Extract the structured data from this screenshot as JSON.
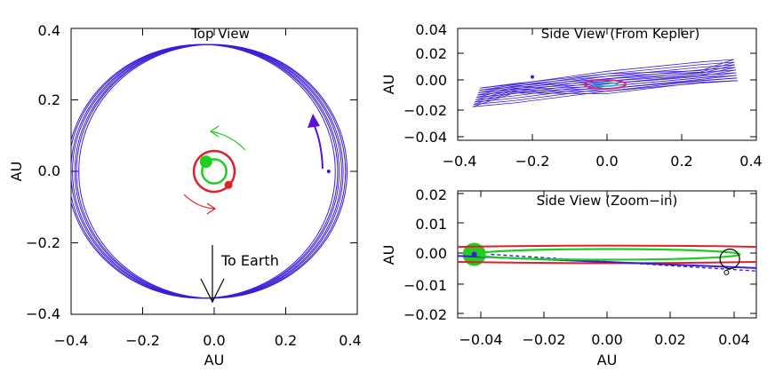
{
  "chart_data": [
    {
      "type": "line",
      "title": "Top View",
      "xlabel": "AU",
      "ylabel": "AU",
      "xlim": [
        -0.4,
        0.4
      ],
      "ylim": [
        -0.4,
        0.4
      ],
      "xticks": [
        "−0.4",
        "−0.2",
        "0.0",
        "0.2",
        "0.4"
      ],
      "yticks": [
        "−0.4",
        "−0.2",
        "0.0",
        "0.2",
        "0.4"
      ],
      "annotation": "To Earth",
      "colors": {
        "outer_orbit": "#3a1fd6",
        "inner_orbit": "#e0202a",
        "innermost_orbit": "#22cc22",
        "outer_arrow": "#5a10d8"
      },
      "orbits": [
        {
          "series": "outer",
          "shape": "ellipse",
          "cx": -0.02,
          "cy": 0.0,
          "rx": 0.375,
          "ry": 0.355
        },
        {
          "series": "inner",
          "shape": "circle",
          "cx": 0.0,
          "cy": 0.0,
          "r": 0.057
        },
        {
          "series": "innermost",
          "shape": "circle",
          "cx": 0.0,
          "cy": 0.0,
          "r": 0.034
        }
      ],
      "bodies": [
        {
          "series": "innermost",
          "x": -0.023,
          "y": 0.027
        },
        {
          "series": "inner",
          "x": 0.04,
          "y": -0.038
        },
        {
          "series": "outer",
          "x": 0.32,
          "y": 0.0
        }
      ]
    },
    {
      "type": "line",
      "title": "Side View (From Kepler)",
      "ylabel": "AU",
      "xlim": [
        -0.4,
        0.4
      ],
      "ylim": [
        -0.045,
        0.045
      ],
      "xticks": [
        "−0.4",
        "−0.2",
        "0.0",
        "0.2",
        "0.4"
      ],
      "yticks": [
        "0.04",
        "0.02",
        "0.00",
        "−0.02",
        "−0.04"
      ],
      "outer_band": {
        "x_range": [
          -0.36,
          0.35
        ],
        "y_at_left": [
          -0.018,
          -0.003
        ],
        "y_at_right": [
          0.003,
          0.02
        ]
      },
      "inner_ellipse": {
        "cx": -0.005,
        "cy": 0.0,
        "rx": 0.055,
        "ry": 0.003
      },
      "bodies": [
        {
          "series": "outer",
          "x": -0.2,
          "y": 0.006
        }
      ]
    },
    {
      "type": "line",
      "title": "Side View (Zoom−in)",
      "xlabel": "AU",
      "ylabel": "AU",
      "xlim": [
        -0.045,
        0.045
      ],
      "ylim": [
        -0.021,
        0.021
      ],
      "xticks": [
        "−0.04",
        "−0.02",
        "0.00",
        "0.02",
        "0.04"
      ],
      "yticks": [
        "0.02",
        "0.01",
        "0.00",
        "−0.01",
        "−0.02"
      ],
      "star": {
        "x": -0.04,
        "y": 0.0
      },
      "curves": [
        {
          "series": "red-upper",
          "color": "#e0202a",
          "points": [
            [
              -0.045,
              0.0025
            ],
            [
              0.0,
              0.0033
            ],
            [
              0.045,
              0.0025
            ]
          ]
        },
        {
          "series": "red-lower",
          "color": "#e0202a",
          "points": [
            [
              -0.045,
              -0.0025
            ],
            [
              0.0,
              -0.0033
            ],
            [
              0.045,
              -0.0025
            ]
          ]
        },
        {
          "series": "blue-solid",
          "color": "#3a1fd6",
          "points": [
            [
              -0.045,
              -0.0005
            ],
            [
              0.0,
              -0.0025
            ],
            [
              0.045,
              -0.0045
            ]
          ]
        },
        {
          "series": "blue-dashed",
          "color": "#3a1fd6",
          "points": [
            [
              -0.035,
              0.0
            ],
            [
              0.045,
              -0.0055
            ]
          ]
        }
      ],
      "green_ellipse": {
        "cx": 0.0,
        "cy": 0.0,
        "rx": 0.04,
        "ry": 0.002
      },
      "black_circle": {
        "x": 0.037,
        "y": -0.0015,
        "r": 0.003
      },
      "small_marker": {
        "x": 0.036,
        "y": -0.006
      }
    }
  ]
}
